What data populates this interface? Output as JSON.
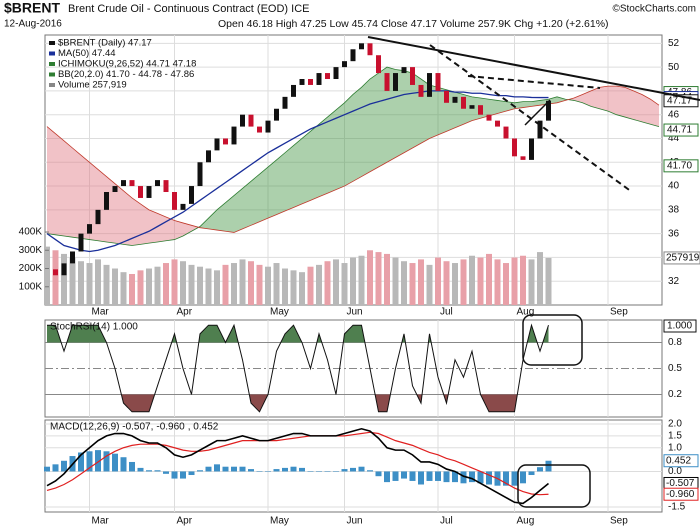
{
  "chart_data": [
    {
      "type": "candlestick",
      "symbol": "$BRENT",
      "title": "Brent Crude Oil - Continuous Contract (EOD) ICE",
      "date": "12-Aug-2016",
      "quote": "Open 46.18 High 47.25 Low 45.74 Close 47.17 Volume 257.9K Chg +1.20 (+2.61%)",
      "source": "©StockCharts.com",
      "legend": [
        "$BRENT (Daily) 47.17",
        "MA(50) 47.44",
        "ICHIMOKU(9,26,52) 44.71 47.18",
        "BB(20,2.0) 41.70 - 44.78 - 47.86",
        "Volume 257,919"
      ],
      "categories": [
        null,
        null,
        null,
        null,
        null,
        "Mar",
        null,
        null,
        null,
        null,
        null,
        null,
        null,
        null,
        null,
        "Apr",
        null,
        null,
        null,
        null,
        null,
        null,
        null,
        null,
        null,
        null,
        "May",
        null,
        null,
        null,
        null,
        null,
        null,
        null,
        null,
        "Jun",
        null,
        null,
        null,
        null,
        null,
        null,
        null,
        null,
        null,
        null,
        "Jul",
        null,
        null,
        null,
        null,
        null,
        null,
        null,
        null,
        "Aug",
        null,
        null,
        null,
        null,
        null,
        null,
        null,
        null,
        null,
        null,
        "Sep",
        null,
        null,
        null,
        null,
        null,
        null
      ],
      "ylim": [
        30,
        52.7
      ],
      "yticks": [
        32,
        34,
        36,
        38,
        40,
        42,
        44,
        46,
        48,
        50,
        52
      ],
      "up_color": "#111111",
      "down_color": "#c8102e",
      "series": [
        {
          "name": "$BRENT (Daily)",
          "values": [
            33,
            32.5,
            33.5,
            34.5,
            36,
            36.8,
            38,
            39.5,
            40,
            40.5,
            40,
            39,
            40,
            40.5,
            39.5,
            38,
            38.5,
            40,
            42,
            43,
            44,
            43.5,
            45,
            46,
            45,
            44.5,
            45.5,
            46.5,
            47.5,
            48.5,
            49,
            48.5,
            49.5,
            49,
            50,
            50.5,
            51.5,
            52,
            51,
            49.5,
            48,
            49.5,
            50,
            48.5,
            47.5,
            49.5,
            48,
            47,
            47.5,
            46.5,
            46.8,
            46,
            45.5,
            45,
            44,
            42.5,
            42.2,
            44,
            45.5,
            47.17,
            null,
            null,
            null,
            null,
            null,
            null,
            null,
            null,
            null,
            null,
            null,
            null,
            null
          ]
        },
        {
          "name": "MA(50)",
          "color": "#1a2f9a",
          "values": [
            36,
            35.5,
            35,
            34.8,
            34.6,
            34.5,
            34.6,
            34.8,
            35,
            35.3,
            35.6,
            35.9,
            36.2,
            36.6,
            37,
            37.4,
            37.8,
            38.3,
            38.8,
            39.3,
            39.8,
            40.3,
            40.8,
            41.3,
            41.8,
            42.3,
            42.8,
            43.2,
            43.6,
            44,
            44.4,
            44.8,
            45.1,
            45.4,
            45.7,
            46,
            46.3,
            46.6,
            46.9,
            47.1,
            47.3,
            47.5,
            47.7,
            47.8,
            47.9,
            48,
            48,
            48,
            47.9,
            47.9,
            47.8,
            47.8,
            47.7,
            47.6,
            47.6,
            47.5,
            47.5,
            47.45,
            47.44,
            47.44,
            null,
            null,
            null,
            null,
            null,
            null,
            null,
            null,
            null,
            null,
            null,
            null,
            null
          ]
        },
        {
          "name": "Span A",
          "color": "#2e7d32",
          "values": [
            36,
            35.9,
            35.8,
            35.7,
            35.6,
            35.5,
            35.4,
            35.3,
            35.2,
            35.1,
            35,
            35.1,
            35.2,
            35.3,
            35.4,
            35.5,
            35.8,
            36.2,
            36.6,
            37.3,
            38,
            38.6,
            39.2,
            39.8,
            40.4,
            41,
            41.6,
            42.2,
            42.8,
            43.4,
            44,
            44.6,
            45.2,
            45.8,
            46.4,
            47,
            47.7,
            48.3,
            49,
            49.5,
            50,
            49.8,
            49.7,
            49.5,
            49,
            48.5,
            48.3,
            48.1,
            47.9,
            47.7,
            47.5,
            47.4,
            47.3,
            47.2,
            47.1,
            47,
            47.1,
            47.1,
            47.2,
            47.3,
            47.5,
            47.3,
            47.2,
            47,
            46.7,
            46.5,
            46.3,
            46,
            45.8,
            45.6,
            45.4,
            45.2,
            45
          ]
        },
        {
          "name": "Span B",
          "color": "#c0392b",
          "values": [
            45,
            44.4,
            43.8,
            43.2,
            42.6,
            42,
            41.4,
            40.8,
            40.2,
            39.6,
            39,
            38.5,
            38,
            37.7,
            37.4,
            37.1,
            36.9,
            36.7,
            36.5,
            36.4,
            36.3,
            36.2,
            36.1,
            36.4,
            36.7,
            37,
            37.3,
            37.6,
            37.9,
            38.2,
            38.5,
            38.8,
            39.1,
            39.4,
            39.7,
            40,
            40.4,
            40.8,
            41.2,
            41.6,
            42,
            42.4,
            42.8,
            43.2,
            43.6,
            44,
            44.3,
            44.6,
            44.9,
            45.2,
            45.5,
            45.7,
            45.9,
            46.1,
            46.3,
            46.5,
            46.6,
            46.7,
            46.8,
            46.9,
            47,
            47.2,
            47.4,
            47.7,
            48,
            48.3,
            48.4,
            48.4,
            48.3,
            48,
            47.7,
            47.3,
            46.8
          ]
        }
      ],
      "cloud_colors": [
        "rgba(70,150,70,0.45)",
        "rgba(225,120,130,0.45)"
      ],
      "volume": {
        "name": "Volume",
        "up_color": "#b8b8b8",
        "down_color": "#e8a0a8",
        "values": [
          320000,
          300000,
          280000,
          260000,
          240000,
          230000,
          250000,
          220000,
          200000,
          180000,
          170000,
          190000,
          200000,
          210000,
          230000,
          250000,
          240000,
          220000,
          210000,
          200000,
          190000,
          220000,
          230000,
          250000,
          240000,
          220000,
          210000,
          230000,
          200000,
          190000,
          180000,
          210000,
          220000,
          240000,
          250000,
          230000,
          260000,
          270000,
          300000,
          290000,
          280000,
          260000,
          240000,
          230000,
          250000,
          220000,
          260000,
          240000,
          230000,
          250000,
          270000,
          260000,
          280000,
          250000,
          230000,
          260000,
          270000,
          250000,
          290000,
          257919,
          null,
          null,
          null,
          null,
          null,
          null,
          null,
          null,
          null,
          null,
          null,
          null,
          null
        ]
      },
      "vlim": [
        0,
        1480000
      ],
      "vticks": [
        {
          "value": 100000,
          "label": "100K"
        },
        {
          "value": 200000,
          "label": "200K"
        },
        {
          "value": 300000,
          "label": "300K"
        },
        {
          "value": 400000,
          "label": "400K"
        }
      ],
      "volume_label": 257919,
      "price_labels": [
        {
          "value": 47.86,
          "color": "#2e7d32"
        },
        {
          "value": 47.44,
          "color": "#1a2f9a"
        },
        {
          "value": 47.17,
          "color": "#111111"
        },
        {
          "value": 44.71,
          "color": "#2e7d32"
        },
        {
          "value": {
            "value": 41.7,
            "label": "41.70"
          },
          "color": "#2e7d32"
        }
      ]
    },
    {
      "type": "line",
      "legend": "StochRSI(14) 1.000",
      "last_label": "1.000",
      "ylim": [
        -0.06,
        1.06
      ],
      "yticks": [
        0.2,
        0.5,
        0.8
      ],
      "color": "#111111",
      "fill_high": "#4f7f4f",
      "fill_low": "#8a4a4a",
      "values": [
        1,
        1,
        0.7,
        1,
        1,
        1,
        1,
        0.8,
        0.5,
        0.1,
        0,
        0,
        0,
        0.3,
        0.6,
        0.9,
        0.5,
        0.2,
        0.9,
        1,
        1,
        0.8,
        1,
        0.6,
        0.1,
        0,
        0.2,
        0.7,
        0.9,
        1,
        0.8,
        0.5,
        0.9,
        0.6,
        0.2,
        0.9,
        1,
        1,
        0.5,
        0,
        0,
        0.5,
        0.9,
        0.3,
        0.1,
        0.9,
        0.4,
        0.1,
        0.6,
        0.4,
        0.7,
        0.2,
        0,
        0,
        0,
        0,
        0.6,
        1,
        0.7,
        1
      ]
    },
    {
      "type": "macd",
      "legend": [
        "MACD(12,26,9) -0.507,",
        "-0.960",
        ", 0.452"
      ],
      "ylim": [
        -1.71,
        2.17
      ],
      "yticks": [
        {
          "value": 2,
          "label": "2.0"
        },
        1.5,
        {
          "value": 1,
          "label": "1.0"
        },
        {
          "value": 0,
          "label": "0.0"
        },
        -1.5
      ],
      "series": [
        {
          "name": "MACD",
          "color": "#000000",
          "values": [
            -0.6,
            -0.4,
            -0.1,
            0.3,
            0.7,
            1.0,
            1.3,
            1.5,
            1.6,
            1.6,
            1.5,
            1.3,
            1.2,
            1.2,
            1.0,
            0.7,
            0.6,
            0.7,
            0.9,
            1.1,
            1.3,
            1.3,
            1.4,
            1.5,
            1.4,
            1.3,
            1.3,
            1.4,
            1.5,
            1.6,
            1.6,
            1.5,
            1.5,
            1.5,
            1.5,
            1.6,
            1.7,
            1.8,
            1.7,
            1.4,
            1.0,
            0.9,
            0.9,
            0.7,
            0.4,
            0.4,
            0.3,
            0.1,
            0.0,
            -0.2,
            -0.3,
            -0.5,
            -0.7,
            -0.9,
            -1.1,
            -1.3,
            -1.35,
            -1.1,
            -0.8,
            -0.507
          ]
        },
        {
          "name": "Signal",
          "color": "#e02020",
          "values": [
            -0.8,
            -0.7,
            -0.55,
            -0.35,
            -0.1,
            0.15,
            0.4,
            0.65,
            0.85,
            1.0,
            1.1,
            1.15,
            1.15,
            1.15,
            1.1,
            1.0,
            0.9,
            0.85,
            0.85,
            0.9,
            1.0,
            1.1,
            1.2,
            1.3,
            1.3,
            1.3,
            1.3,
            1.3,
            1.35,
            1.4,
            1.45,
            1.5,
            1.5,
            1.5,
            1.5,
            1.5,
            1.55,
            1.6,
            1.65,
            1.6,
            1.45,
            1.3,
            1.2,
            1.1,
            0.95,
            0.8,
            0.7,
            0.55,
            0.45,
            0.3,
            0.15,
            0.0,
            -0.15,
            -0.3,
            -0.5,
            -0.7,
            -0.85,
            -0.95,
            -0.98,
            -0.96
          ]
        },
        {
          "name": "Histogram",
          "color": "#3d8fc6",
          "values": [
            0.2,
            0.3,
            0.45,
            0.65,
            0.8,
            0.85,
            0.9,
            0.85,
            0.75,
            0.6,
            0.4,
            0.15,
            0.05,
            0.05,
            -0.1,
            -0.3,
            -0.3,
            -0.15,
            0.05,
            0.2,
            0.3,
            0.2,
            0.2,
            0.2,
            0.1,
            0,
            0,
            0.1,
            0.15,
            0.2,
            0.15,
            0,
            0,
            0,
            0,
            0.1,
            0.15,
            0.2,
            0.05,
            -0.2,
            -0.45,
            -0.4,
            -0.3,
            -0.4,
            -0.55,
            -0.4,
            -0.4,
            -0.45,
            -0.45,
            -0.5,
            -0.45,
            -0.5,
            -0.55,
            -0.6,
            -0.6,
            -0.6,
            -0.5,
            -0.15,
            0.18,
            0.452
          ]
        }
      ],
      "box_labels": [
        {
          "value": 0.452,
          "color": "#3d8fc6"
        },
        {
          "value": -0.507,
          "color": "#000000"
        },
        {
          "value": {
            "value": -0.96,
            "label": "-0.960"
          },
          "color": "#e02020"
        }
      ]
    }
  ]
}
